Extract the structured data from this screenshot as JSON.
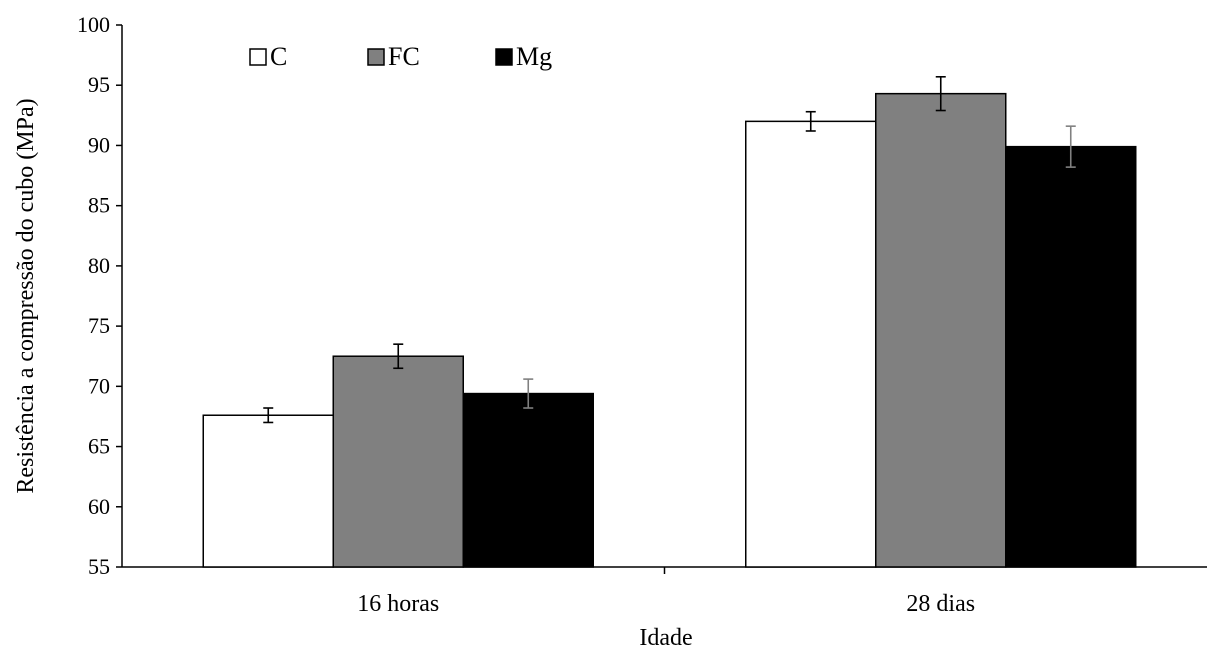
{
  "chart_data": {
    "type": "bar",
    "title": "",
    "xlabel": "Idade",
    "ylabel": "Resistência a compressão do cubo (MPa)",
    "categories": [
      "16 horas",
      "28 dias"
    ],
    "series": [
      {
        "name": "C",
        "values": [
          67.6,
          92.0
        ],
        "errors": [
          0.6,
          0.8
        ],
        "color": "#ffffff",
        "error_color": "#000000"
      },
      {
        "name": "FC",
        "values": [
          72.5,
          94.3
        ],
        "errors": [
          1.0,
          1.4
        ],
        "color": "#808080",
        "error_color": "#000000"
      },
      {
        "name": "Mg",
        "values": [
          69.4,
          89.9
        ],
        "errors": [
          1.2,
          1.7
        ],
        "color": "#000000",
        "error_color": "#808080"
      }
    ],
    "ylim": [
      55,
      100
    ],
    "yticks": [
      55,
      60,
      65,
      70,
      75,
      80,
      85,
      90,
      95,
      100
    ],
    "ytick_labels": [
      "55",
      "60",
      "65",
      "70",
      "75",
      "80",
      "85",
      "90",
      "95",
      "100"
    ],
    "grid": false,
    "legend_position": "top-left",
    "error_bars": true
  }
}
